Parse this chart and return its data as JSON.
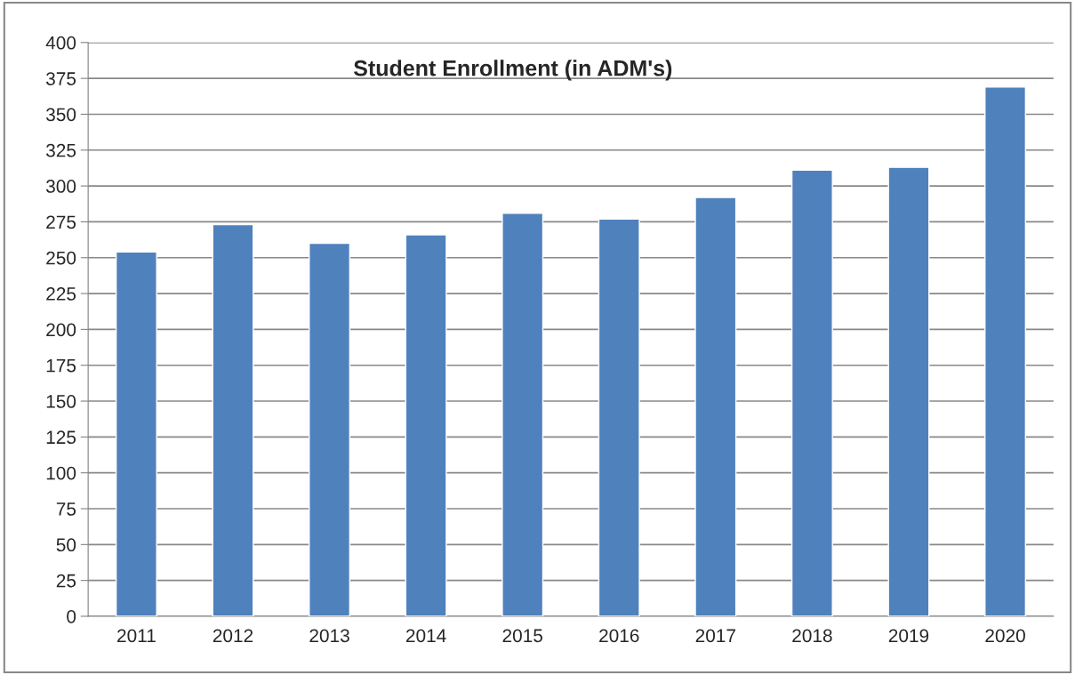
{
  "chart_data": {
    "type": "bar",
    "title": "Student Enrollment (in ADM's)",
    "categories": [
      "2011",
      "2012",
      "2013",
      "2014",
      "2015",
      "2016",
      "2017",
      "2018",
      "2019",
      "2020"
    ],
    "values": [
      254,
      273,
      260,
      266,
      281,
      277,
      292,
      311,
      313,
      369
    ],
    "color": "#4f81bd",
    "ylim": [
      0,
      400
    ],
    "yticks": [
      0,
      25,
      50,
      75,
      100,
      125,
      150,
      175,
      200,
      225,
      250,
      275,
      300,
      325,
      350,
      375,
      400
    ],
    "grid": "y",
    "legend": false
  }
}
